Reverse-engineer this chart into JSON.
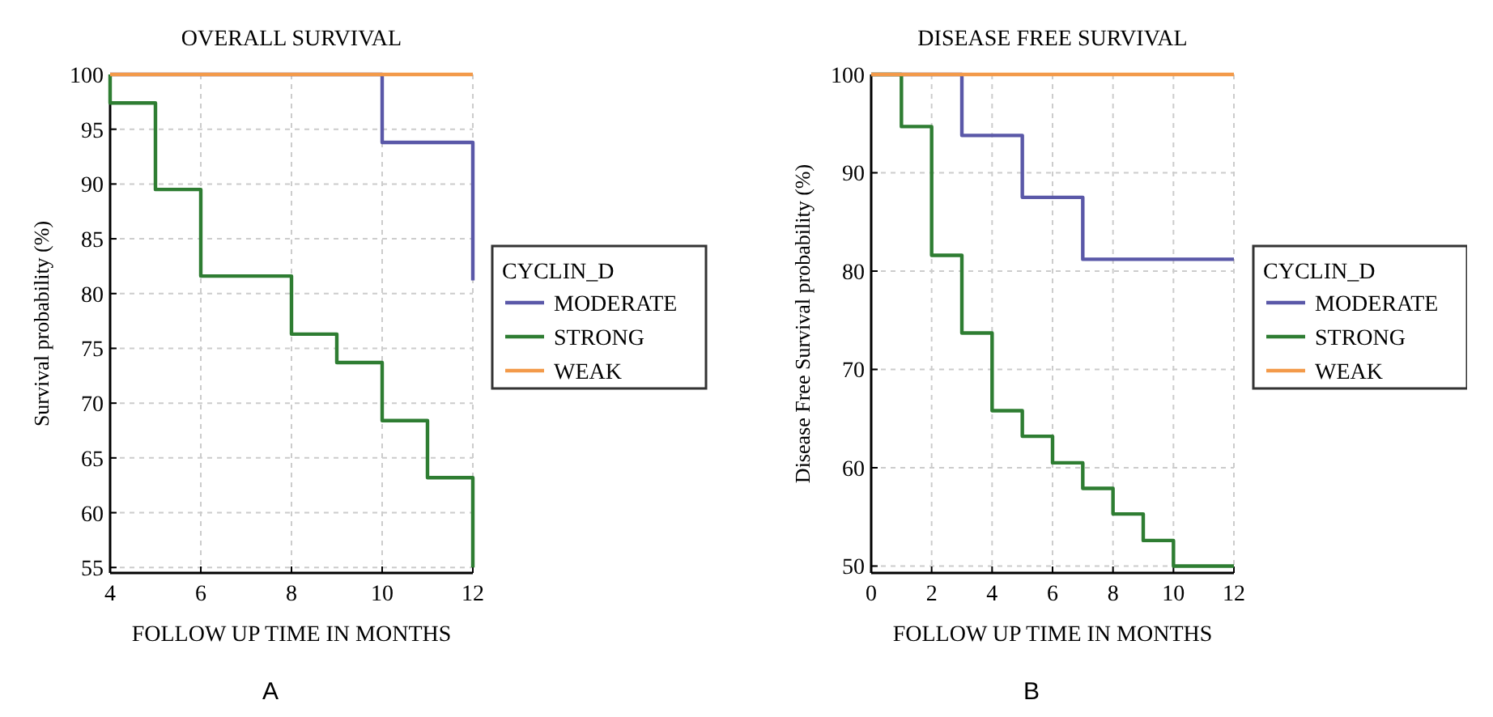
{
  "chart_data": [
    {
      "type": "step",
      "title": "OVERALL SURVIVAL",
      "xlabel": "FOLLOW UP TIME IN MONTHS",
      "ylabel": "Survival probability (%)",
      "legend_title": "CYCLIN_D",
      "legend": "right",
      "grid": true,
      "xlim": [
        4,
        12
      ],
      "xticks": [
        4,
        6,
        8,
        10,
        12
      ],
      "ylim": [
        54.5,
        100
      ],
      "yticks": [
        55,
        60,
        65,
        70,
        75,
        80,
        85,
        90,
        95,
        100
      ],
      "annotations": [
        "A"
      ],
      "series": [
        {
          "name": "MODERATE",
          "color": "#5a58a8",
          "x": [
            4,
            10,
            12
          ],
          "values": [
            100,
            93.8,
            81.2
          ]
        },
        {
          "name": "STRONG",
          "color": "#2e7d32",
          "x": [
            4,
            4,
            5,
            6,
            8,
            9,
            10,
            11,
            12
          ],
          "values": [
            100,
            97.4,
            89.5,
            81.6,
            76.3,
            73.7,
            68.4,
            63.2,
            55
          ]
        },
        {
          "name": "WEAK",
          "color": "#f39a4a",
          "x": [
            4,
            12
          ],
          "values": [
            100,
            100
          ]
        }
      ]
    },
    {
      "type": "step",
      "title": "DISEASE FREE SURVIVAL",
      "xlabel": "FOLLOW UP TIME IN MONTHS",
      "ylabel": "Disease Free Survival probability (%)",
      "legend_title": "CYCLIN_D",
      "legend": "right",
      "grid": true,
      "xlim": [
        0,
        12
      ],
      "xticks": [
        0,
        2,
        4,
        6,
        8,
        10,
        12
      ],
      "ylim": [
        49.3,
        100
      ],
      "yticks": [
        50,
        60,
        70,
        80,
        90,
        100
      ],
      "annotations": [
        "B"
      ],
      "series": [
        {
          "name": "MODERATE",
          "color": "#5a58a8",
          "x": [
            0,
            3,
            5,
            7,
            12
          ],
          "values": [
            100,
            93.8,
            87.5,
            81.2,
            81.2
          ]
        },
        {
          "name": "STRONG",
          "color": "#2e7d32",
          "x": [
            0,
            1,
            2,
            3,
            4,
            5,
            6,
            7,
            8,
            9,
            10,
            12
          ],
          "values": [
            100,
            94.7,
            81.6,
            73.7,
            65.8,
            63.2,
            60.5,
            57.9,
            55.3,
            52.6,
            50,
            50
          ]
        },
        {
          "name": "WEAK",
          "color": "#f39a4a",
          "x": [
            0,
            12
          ],
          "values": [
            100,
            100
          ]
        }
      ]
    }
  ]
}
